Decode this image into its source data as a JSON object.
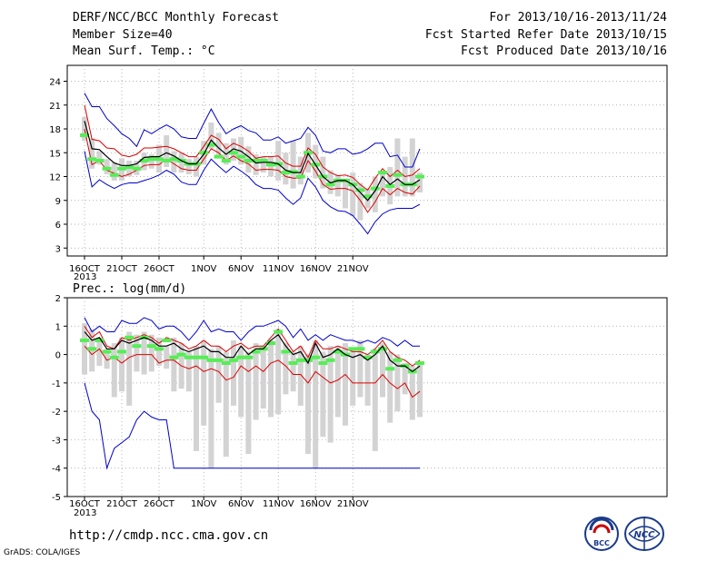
{
  "header": {
    "title": "DERF/NCC/BCC Monthly Forecast",
    "member_size": "Member Size=40",
    "variable": "Mean Surf. Temp.: °C",
    "forecast_period": "For 2013/10/16-2013/11/24",
    "fcst_started": "Fcst Started Refer Date 2013/10/15",
    "fcst_produced": "Fcst Produced Date 2013/10/16"
  },
  "footer": {
    "url": "http://cmdp.ncc.cma.gov.cn",
    "credit": "GrADS: COLA/IGES",
    "logo_left_text": "BCC",
    "logo_right_text": "NCC"
  },
  "colors": {
    "envelope": "#0000cc",
    "ensemble_spread": "#dd0000",
    "ensemble_mean": "#000000",
    "box": "#d3d3d3",
    "median": "#55ee55"
  },
  "chart_data": [
    {
      "type": "line",
      "title": "Mean Surf. Temp.: °C",
      "x_tick_labels": [
        "16OCT",
        "21OCT",
        "26OCT",
        "1NOV",
        "6NOV",
        "11NOV",
        "16NOV",
        "21NOV"
      ],
      "x_tick_day_index": [
        0,
        5,
        10,
        16,
        21,
        26,
        31,
        36
      ],
      "year_label": "2013",
      "ylim": [
        2,
        26
      ],
      "y_ticks": [
        3,
        6,
        9,
        12,
        15,
        18,
        21,
        24
      ],
      "grid": true,
      "series": [
        {
          "role": "max",
          "values": [
            22.5,
            20.8,
            20.8,
            19.3,
            18.4,
            17.4,
            16.8,
            15.8,
            17.9,
            17.4,
            18,
            18.5,
            18,
            17,
            16.8,
            16.8,
            18.7,
            20.5,
            18.8,
            17.4,
            18,
            18.4,
            17.8,
            17.5,
            16.6,
            16.6,
            17,
            16.2,
            16.5,
            16.8,
            18.2,
            17.2,
            15.2,
            15,
            15.5,
            15.5,
            14.8,
            15,
            15.5,
            16.2,
            16.2,
            14.5,
            14.7,
            13.2,
            13.2,
            15.5
          ]
        },
        {
          "role": "upper",
          "values": [
            21,
            16.7,
            16.5,
            15.6,
            15.5,
            14.7,
            14.5,
            14.8,
            15.6,
            15.6,
            15.7,
            15.8,
            15.5,
            15,
            14.5,
            14.5,
            15.8,
            17.2,
            16.7,
            15.5,
            16.2,
            15.8,
            15.2,
            14.3,
            14.5,
            14.5,
            14.6,
            13.7,
            13.3,
            13.3,
            15.6,
            14.8,
            13.2,
            12.5,
            12.1,
            12.2,
            11.9,
            11,
            10.3,
            11.8,
            13,
            12,
            12.8,
            12,
            12.2,
            13
          ]
        },
        {
          "role": "mean",
          "values": [
            19,
            15.5,
            15.4,
            14.5,
            13.7,
            13.4,
            13.4,
            13.6,
            14.4,
            14.5,
            14.5,
            15,
            14.6,
            14,
            13.6,
            13.6,
            14.8,
            16.6,
            15.6,
            14.8,
            15.5,
            15.2,
            14.5,
            13.7,
            13.8,
            13.8,
            13.6,
            12.8,
            12.5,
            12.5,
            14.9,
            13.5,
            12,
            11.2,
            11.5,
            11.5,
            11,
            10,
            9,
            10.2,
            12,
            11,
            11.7,
            11,
            11,
            11.6
          ]
        },
        {
          "role": "lower",
          "values": [
            18,
            13.5,
            14,
            12.8,
            12.4,
            12,
            12.3,
            12.8,
            13.4,
            13.5,
            13.5,
            14.2,
            13.6,
            13,
            12.8,
            12.8,
            14.2,
            15.5,
            15,
            14,
            14.6,
            14,
            13.6,
            12.8,
            12.9,
            12.9,
            12.8,
            12,
            11.8,
            11.8,
            14,
            12.7,
            11,
            10.4,
            10.5,
            10.5,
            10.2,
            9,
            7.5,
            8.8,
            10.5,
            9.7,
            10.5,
            10,
            9.8,
            10.8
          ]
        },
        {
          "role": "min",
          "values": [
            15.2,
            10.7,
            11.6,
            11,
            10.5,
            11,
            11.2,
            11.2,
            11.5,
            11.8,
            12.2,
            12.8,
            12.3,
            11.3,
            11,
            11,
            12.8,
            14.2,
            13.3,
            12.5,
            13.3,
            12.7,
            12,
            11,
            10.5,
            10.5,
            10.3,
            9.3,
            8.5,
            9.3,
            11.8,
            10.7,
            9,
            8.2,
            7.7,
            7.6,
            7.1,
            6,
            4.8,
            6.3,
            7.3,
            7.8,
            8,
            8,
            8,
            8.5
          ]
        },
        {
          "role": "box_low",
          "values": [
            16.5,
            13,
            13.5,
            12.3,
            11.5,
            11.5,
            12,
            12.2,
            12.8,
            13,
            12.5,
            13.2,
            12.5,
            12.5,
            12.3,
            12,
            13.5,
            15.5,
            14.5,
            13.5,
            14,
            13.5,
            12.5,
            12.2,
            12.5,
            12,
            11.5,
            11,
            10.5,
            11,
            12.5,
            11.8,
            10.5,
            9.8,
            9.5,
            8,
            7,
            6.5,
            8,
            7.5,
            9.5,
            8.5,
            9.5,
            9.5,
            9.5,
            10
          ]
        },
        {
          "role": "box_high",
          "values": [
            19.5,
            16.8,
            15.2,
            14.2,
            13.8,
            14.3,
            14,
            14,
            15,
            14.8,
            16,
            17.2,
            15.2,
            15,
            14.2,
            14.5,
            16.5,
            18.8,
            17.5,
            16.2,
            16.8,
            17,
            15.8,
            14.8,
            14.5,
            14.5,
            16.5,
            15,
            16.5,
            14.5,
            17.5,
            16,
            14.5,
            12.8,
            12.2,
            11.5,
            12.5,
            11.2,
            10.5,
            12,
            12.5,
            13.2,
            16.8,
            14.5,
            16.8,
            12.5
          ]
        },
        {
          "role": "median",
          "values": [
            17.2,
            14.2,
            14,
            13,
            12.2,
            13,
            13.2,
            13,
            14,
            14.2,
            14.2,
            14,
            14.2,
            14,
            13.6,
            13.6,
            15,
            16,
            14.5,
            14,
            15,
            14.5,
            14,
            14,
            14,
            13.5,
            13.6,
            12.5,
            12.6,
            12,
            15,
            13.5,
            12,
            11,
            11.5,
            11.5,
            11,
            10.3,
            9.5,
            10.5,
            12.5,
            10.8,
            12.2,
            11,
            11,
            12
          ]
        }
      ]
    },
    {
      "type": "line",
      "title": "Prec.: log(mm/d)",
      "x_tick_labels": [
        "16OCT",
        "21OCT",
        "26OCT",
        "1NOV",
        "6NOV",
        "11NOV",
        "16NOV",
        "21NOV"
      ],
      "x_tick_day_index": [
        0,
        5,
        10,
        16,
        21,
        26,
        31,
        36
      ],
      "year_label": "2013",
      "ylim": [
        -5,
        2
      ],
      "y_ticks": [
        -5,
        -4,
        -3,
        -2,
        -1,
        0,
        1,
        2
      ],
      "grid": true,
      "series": [
        {
          "role": "max",
          "values": [
            1.3,
            0.8,
            1,
            0.8,
            0.8,
            1.2,
            1.1,
            1.1,
            1.3,
            1.2,
            0.9,
            1,
            1,
            0.8,
            0.5,
            0.8,
            1.2,
            0.8,
            0.9,
            0.8,
            0.8,
            0.5,
            0.8,
            1,
            1,
            1.1,
            1.2,
            1,
            0.6,
            0.9,
            0.5,
            0.7,
            0.5,
            0.7,
            0.6,
            0.5,
            0.5,
            0.4,
            0.5,
            0.4,
            0.6,
            0.5,
            0.3,
            0.5,
            0.3,
            0.3
          ]
        },
        {
          "role": "upper",
          "values": [
            1,
            0.6,
            0.8,
            0.3,
            0.2,
            0.6,
            0.5,
            0.6,
            0.7,
            0.6,
            0.4,
            0.6,
            0.5,
            0.4,
            0.2,
            0.3,
            0.5,
            0.3,
            0.3,
            0.1,
            0.3,
            0.4,
            0.2,
            0.3,
            0.3,
            0.6,
            0.9,
            0.5,
            0.1,
            0.3,
            -0.1,
            0.5,
            0.2,
            0.2,
            0.3,
            0.2,
            0.1,
            0.1,
            0,
            0.2,
            0.5,
            0.1,
            -0.1,
            -0.2,
            -0.4,
            -0.2
          ]
        },
        {
          "role": "mean",
          "values": [
            0.8,
            0.5,
            0.6,
            0.2,
            0.2,
            0.5,
            0.4,
            0.5,
            0.6,
            0.5,
            0.3,
            0.3,
            0.4,
            0.2,
            0.1,
            0.2,
            0.3,
            0.1,
            0.1,
            -0.1,
            -0.1,
            0.3,
            0,
            0.2,
            0.2,
            0.5,
            0.7,
            0.3,
            0,
            0.1,
            -0.3,
            0.4,
            -0.1,
            0,
            0.2,
            0,
            -0.1,
            0,
            -0.2,
            0,
            0.3,
            -0.2,
            -0.4,
            -0.4,
            -0.6,
            -0.4
          ]
        },
        {
          "role": "lower",
          "values": [
            0.3,
            0,
            0.2,
            -0.2,
            -0.1,
            -0.3,
            -0.1,
            0,
            0,
            0,
            -0.3,
            -0.2,
            -0.2,
            -0.4,
            -0.5,
            -0.4,
            -0.6,
            -0.5,
            -0.6,
            -0.9,
            -0.8,
            -0.4,
            -0.6,
            -0.4,
            -0.6,
            -0.3,
            -0.2,
            -0.4,
            -0.7,
            -0.7,
            -1,
            -0.6,
            -0.8,
            -1,
            -0.9,
            -0.7,
            -1,
            -1,
            -1,
            -1,
            -0.7,
            -1,
            -1.2,
            -1,
            -1.5,
            -1.3
          ]
        },
        {
          "role": "min",
          "values": [
            -1,
            -2,
            -2.3,
            -4,
            -3.3,
            -3.1,
            -2.9,
            -2.3,
            -2,
            -2.2,
            -2.3,
            -2.3,
            -4,
            -4,
            -4,
            -4,
            -4,
            -4,
            -4,
            -4,
            -4,
            -4,
            -4,
            -4,
            -4,
            -4,
            -4,
            -4,
            -4,
            -4,
            -4,
            -4,
            -4,
            -4,
            -4,
            -4,
            -4,
            -4,
            -4,
            -4,
            -4,
            -4,
            -4,
            -4,
            -4,
            -4
          ]
        },
        {
          "role": "box_low",
          "values": [
            -0.7,
            -0.6,
            -0.4,
            -0.5,
            -1.5,
            -1.3,
            -1.8,
            -0.6,
            -0.7,
            -0.6,
            -0.4,
            -0.5,
            -1.3,
            -1.2,
            -1.3,
            -3.4,
            -2.5,
            -4,
            -1.7,
            -3.6,
            -1.8,
            -2.2,
            -3.5,
            -2.3,
            -1.9,
            -2.2,
            -2.1,
            -1.4,
            -1.3,
            -1.8,
            -3.5,
            -4,
            -2.9,
            -3.1,
            -2.2,
            -2.5,
            -1.8,
            -1.5,
            -1.8,
            -3.4,
            -1.5,
            -2.4,
            -2,
            -1.4,
            -2.3,
            -2.2
          ]
        },
        {
          "role": "box_high",
          "values": [
            1.1,
            0.9,
            0.6,
            0.2,
            0.4,
            0.6,
            0.8,
            0.7,
            0.8,
            0.7,
            0.6,
            0.3,
            0.6,
            0.4,
            0.1,
            0.3,
            0.5,
            0.2,
            0.3,
            0.1,
            0.5,
            0.3,
            0.1,
            0.4,
            0.3,
            0.5,
            0.9,
            0.4,
            0.1,
            0.3,
            0,
            0.5,
            0.1,
            0.3,
            0.3,
            0.4,
            0.2,
            0.5,
            0,
            0.2,
            0.4,
            0.1,
            0,
            -0.3,
            -0.4,
            -0.3
          ]
        },
        {
          "role": "median",
          "values": [
            0.5,
            0.2,
            0.5,
            0.1,
            -0.1,
            0.1,
            0.6,
            0.3,
            0.6,
            0.3,
            0.2,
            0.5,
            -0.1,
            0,
            -0.1,
            -0.1,
            -0.1,
            -0.2,
            -0.2,
            -0.3,
            -0.2,
            -0.1,
            -0.1,
            0.1,
            0.2,
            0.4,
            0.8,
            0.1,
            -0.3,
            -0.2,
            -0.2,
            -0.1,
            -0.3,
            -0.2,
            0.1,
            0,
            0.2,
            0.2,
            -0.1,
            0.1,
            0.2,
            -0.5,
            -0.2,
            -0.4,
            -0.6,
            -0.3
          ]
        }
      ]
    }
  ]
}
